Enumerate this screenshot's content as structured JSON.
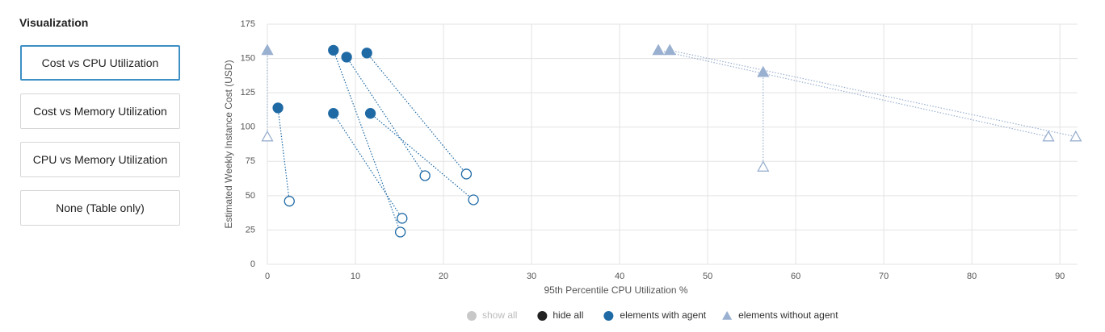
{
  "sidebar": {
    "title": "Visualization",
    "options": [
      "Cost vs CPU Utilization",
      "Cost vs Memory Utilization",
      "CPU vs Memory Utilization",
      "None (Table only)"
    ],
    "selected": 0
  },
  "chart_data": {
    "type": "scatter",
    "xlabel": "95th Percentile CPU Utilization %",
    "ylabel": "Estimated Weekly Instance Cost (USD)",
    "xlim": [
      0,
      92
    ],
    "ylim": [
      0,
      175
    ],
    "xticks": [
      0,
      10,
      20,
      30,
      40,
      50,
      60,
      70,
      80,
      90
    ],
    "yticks": [
      0,
      25,
      50,
      75,
      100,
      125,
      150,
      175
    ],
    "grid": true,
    "legend_controls": [
      "show all",
      "hide all"
    ],
    "series": [
      {
        "name": "elements with agent",
        "color": "#1f6aa5",
        "marker": "circle",
        "x": [
          1.2,
          7.5,
          9.0,
          11.3,
          7.5,
          11.7
        ],
        "values": [
          114,
          156,
          151,
          154,
          110,
          110
        ],
        "target_x": [
          2.5,
          15.1,
          17.9,
          22.6,
          15.3,
          23.4
        ],
        "target_values": [
          46,
          23.5,
          64.6,
          65.8,
          33.5,
          47
        ]
      },
      {
        "name": "elements without agent",
        "color": "#9ab0d0",
        "marker": "triangle",
        "x": [
          0,
          44.4,
          45.7,
          56.3
        ],
        "values": [
          156,
          156,
          156,
          140
        ],
        "target_x": [
          0,
          88.7,
          91.8,
          56.3
        ],
        "target_values": [
          93,
          93,
          93,
          71
        ]
      }
    ]
  }
}
